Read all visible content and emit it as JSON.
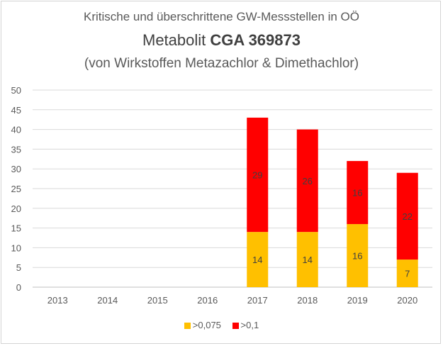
{
  "title": {
    "line1": "Kritische und überschrittene GW-Messstellen in OÖ",
    "line2_prefix": "Metabolit ",
    "line2_bold": "CGA 369873",
    "line3": "(von Wirkstoffen Metazachlor & Dimethachlor)"
  },
  "colors": {
    "series1": "#ffc000",
    "series2": "#ff0000",
    "grid": "#d9d9d9",
    "axis_text": "#595959",
    "label_text": "#404040"
  },
  "chart_data": {
    "type": "bar",
    "stacked": true,
    "categories": [
      "2013",
      "2014",
      "2015",
      "2016",
      "2017",
      "2018",
      "2019",
      "2020"
    ],
    "series": [
      {
        "name": ">0,075",
        "values": [
          0,
          0,
          0,
          0,
          14,
          14,
          16,
          7
        ],
        "labels": [
          "",
          "",
          "",
          "",
          "14",
          "14",
          "16",
          "7"
        ]
      },
      {
        "name": ">0,1",
        "values": [
          0,
          0,
          0,
          0,
          29,
          26,
          16,
          22
        ],
        "labels": [
          "",
          "",
          "",
          "",
          "29",
          "26",
          "16",
          "22"
        ]
      }
    ],
    "ylim": [
      0,
      50
    ],
    "yticks": [
      "0",
      "5",
      "10",
      "15",
      "20",
      "25",
      "30",
      "35",
      "40",
      "45",
      "50"
    ],
    "grid": true,
    "legend_position": "bottom"
  }
}
